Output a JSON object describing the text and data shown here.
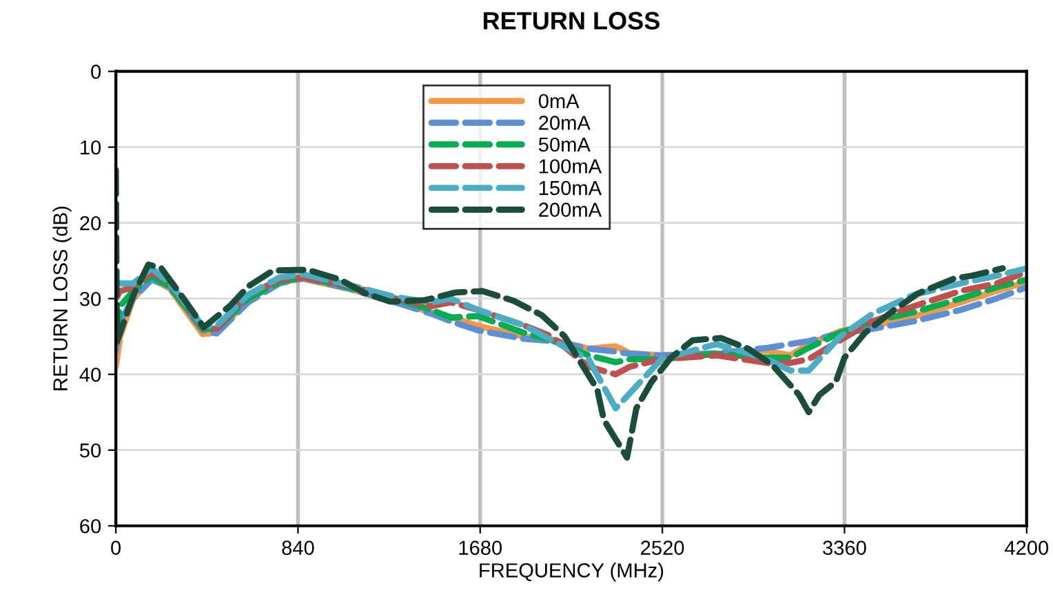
{
  "chart_data": {
    "type": "line",
    "title": "RETURN LOSS",
    "xlabel": "FREQUENCY (MHz)",
    "ylabel": "RETURN LOSS (dB)",
    "xlim": [
      0,
      4200
    ],
    "xticks": [
      0,
      840,
      1680,
      2520,
      3360,
      4200
    ],
    "ylim": [
      60,
      0
    ],
    "yticks": [
      0,
      10,
      20,
      30,
      40,
      50,
      60
    ],
    "grid": true,
    "legend": "top",
    "x": [
      0,
      20,
      80,
      165,
      250,
      400,
      465,
      610,
      755,
      865,
      1075,
      1290,
      1455,
      1545,
      1670,
      1880,
      2010,
      2180,
      2305,
      2370,
      2515,
      2770,
      3005,
      3110,
      3195,
      3340,
      3490,
      3680,
      3895,
      4060,
      4200
    ],
    "series": [
      {
        "name": "0mA",
        "color": "#f79646",
        "line_style": "solid",
        "values": [
          39,
          35,
          30,
          27.4,
          28.7,
          34.7,
          34.5,
          30.2,
          27.8,
          27.4,
          28.7,
          30.5,
          31.8,
          32.4,
          33.6,
          35,
          35.4,
          36.6,
          36.3,
          37.2,
          37.5,
          37.3,
          36.9,
          37.5,
          36,
          34.3,
          33.6,
          32.4,
          30.5,
          29,
          27.8
        ]
      },
      {
        "name": "20mA",
        "color": "#5b8fd6",
        "line_style": "dashed",
        "values": [
          37,
          33,
          30,
          27.5,
          28.5,
          34.2,
          34.6,
          30.5,
          28,
          27.3,
          28.7,
          30.5,
          32,
          33,
          34.2,
          35.3,
          35.6,
          36.6,
          37,
          37.3,
          37.5,
          37.2,
          36.5,
          36,
          35.6,
          34.6,
          34,
          33,
          31.5,
          30,
          28.5
        ]
      },
      {
        "name": "50mA",
        "color": "#00b050",
        "line_style": "dashed",
        "values": [
          35,
          31,
          29,
          27,
          28.5,
          34,
          34,
          30,
          27.8,
          27.2,
          28.5,
          30,
          31.5,
          32.5,
          32.3,
          34.5,
          35.5,
          37.5,
          38.4,
          38,
          38,
          37.3,
          37.8,
          37.8,
          36.5,
          34.5,
          33,
          31.8,
          30,
          28.5,
          27.5
        ]
      },
      {
        "name": "100mA",
        "color": "#c0504d",
        "line_style": "dashed",
        "values": [
          30,
          29,
          28.5,
          26.5,
          28,
          33.8,
          34,
          29.5,
          27.5,
          27.2,
          28.3,
          30,
          31,
          30.5,
          31.5,
          33.5,
          35,
          39,
          40,
          39,
          38,
          37.5,
          38.5,
          38.5,
          38,
          35.5,
          33,
          31,
          29,
          28,
          26.5
        ]
      },
      {
        "name": "150mA",
        "color": "#4bacc6",
        "line_style": "dashed",
        "values": [
          28,
          28,
          28,
          26,
          28,
          33.6,
          33.6,
          29.5,
          27.2,
          26.8,
          28.2,
          29.8,
          30.5,
          30,
          31.5,
          33.5,
          35.5,
          38,
          44.5,
          42.5,
          38,
          36,
          38,
          39.5,
          39.5,
          35,
          32,
          29.5,
          28,
          27,
          26
        ]
      },
      {
        "name": "200mA",
        "color": "#1a4d3a",
        "line_style": "dashed",
        "x": [
          0,
          5,
          80,
          150,
          210,
          325,
          405,
          525,
          610,
          725,
          885,
          1035,
          1150,
          1265,
          1425,
          1565,
          1690,
          1835,
          1965,
          2070,
          2220,
          2250,
          2357,
          2400,
          2470,
          2560,
          2660,
          2790,
          2915,
          3025,
          3150,
          3195,
          3245,
          3320,
          3360,
          3455,
          3575,
          3700,
          3870,
          3945,
          4090
        ],
        "values": [
          13,
          35.7,
          29.6,
          25.5,
          26,
          30.5,
          33.8,
          31,
          28.4,
          26.3,
          26.2,
          27.5,
          29.3,
          30.4,
          30.2,
          29.2,
          29,
          30.3,
          32.2,
          35,
          42,
          46,
          51,
          44.5,
          41,
          37.8,
          35.5,
          35.2,
          36.6,
          38.7,
          42.7,
          45,
          42.7,
          41,
          37.8,
          34.5,
          31.8,
          29.3,
          27.3,
          27,
          26
        ]
      }
    ]
  }
}
